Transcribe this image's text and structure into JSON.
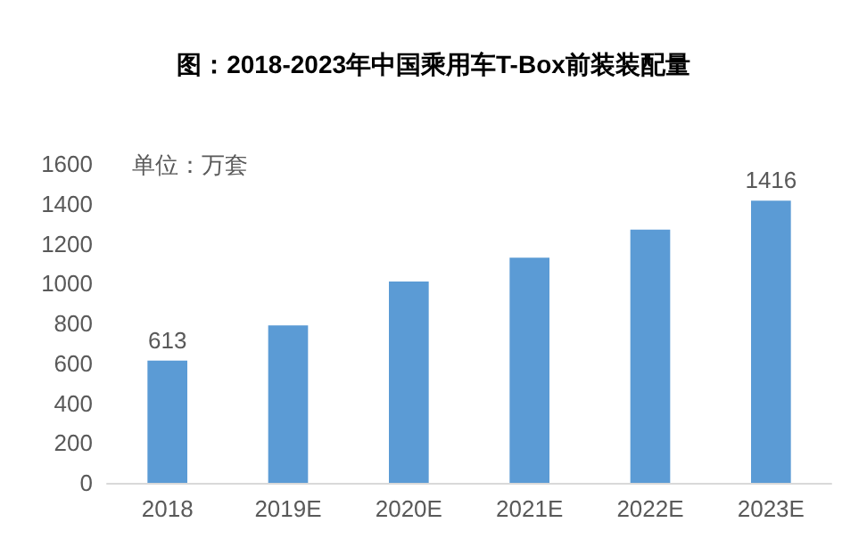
{
  "chart_data": {
    "type": "bar",
    "title": "图：2018-2023年中国乘用车T-Box前装装配量",
    "annotations": [
      "单位：万套"
    ],
    "categories": [
      "2018",
      "2019E",
      "2020E",
      "2021E",
      "2022E",
      "2023E"
    ],
    "values": [
      613,
      790,
      1010,
      1130,
      1270,
      1416
    ],
    "value_labels": [
      "613",
      null,
      null,
      null,
      null,
      "1416"
    ],
    "color": "#5b9bd5",
    "ylim": [
      0,
      1600
    ],
    "yticks": [
      0,
      200,
      400,
      600,
      800,
      1000,
      1200,
      1400,
      1600
    ],
    "grid": false
  }
}
